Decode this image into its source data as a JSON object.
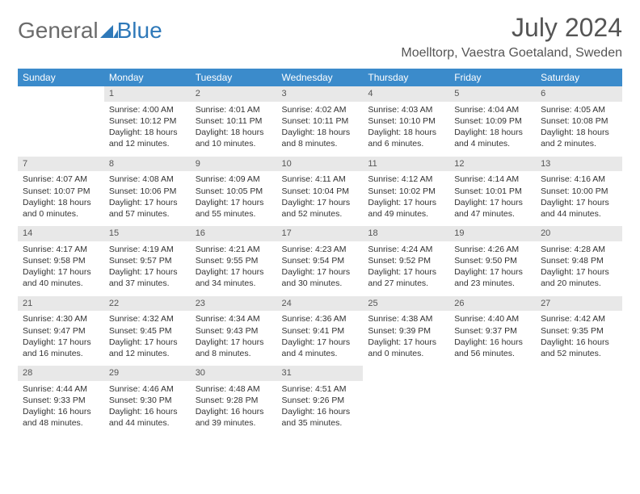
{
  "brand": {
    "part1": "General",
    "part2": "Blue"
  },
  "colors": {
    "header_bg": "#3b8bcb",
    "header_text": "#ffffff",
    "daynum_bg": "#e8e8e8",
    "text": "#333333",
    "brand_gray": "#6b6b6b",
    "brand_blue": "#2f79b9"
  },
  "title": {
    "month": "July 2024",
    "location": "Moelltorp, Vaestra Goetaland, Sweden"
  },
  "weekdays": [
    "Sunday",
    "Monday",
    "Tuesday",
    "Wednesday",
    "Thursday",
    "Friday",
    "Saturday"
  ],
  "weeks": [
    [
      {
        "blank": true
      },
      {
        "day": "1",
        "sunrise": "Sunrise: 4:00 AM",
        "sunset": "Sunset: 10:12 PM",
        "daylight1": "Daylight: 18 hours",
        "daylight2": "and 12 minutes."
      },
      {
        "day": "2",
        "sunrise": "Sunrise: 4:01 AM",
        "sunset": "Sunset: 10:11 PM",
        "daylight1": "Daylight: 18 hours",
        "daylight2": "and 10 minutes."
      },
      {
        "day": "3",
        "sunrise": "Sunrise: 4:02 AM",
        "sunset": "Sunset: 10:11 PM",
        "daylight1": "Daylight: 18 hours",
        "daylight2": "and 8 minutes."
      },
      {
        "day": "4",
        "sunrise": "Sunrise: 4:03 AM",
        "sunset": "Sunset: 10:10 PM",
        "daylight1": "Daylight: 18 hours",
        "daylight2": "and 6 minutes."
      },
      {
        "day": "5",
        "sunrise": "Sunrise: 4:04 AM",
        "sunset": "Sunset: 10:09 PM",
        "daylight1": "Daylight: 18 hours",
        "daylight2": "and 4 minutes."
      },
      {
        "day": "6",
        "sunrise": "Sunrise: 4:05 AM",
        "sunset": "Sunset: 10:08 PM",
        "daylight1": "Daylight: 18 hours",
        "daylight2": "and 2 minutes."
      }
    ],
    [
      {
        "day": "7",
        "sunrise": "Sunrise: 4:07 AM",
        "sunset": "Sunset: 10:07 PM",
        "daylight1": "Daylight: 18 hours",
        "daylight2": "and 0 minutes."
      },
      {
        "day": "8",
        "sunrise": "Sunrise: 4:08 AM",
        "sunset": "Sunset: 10:06 PM",
        "daylight1": "Daylight: 17 hours",
        "daylight2": "and 57 minutes."
      },
      {
        "day": "9",
        "sunrise": "Sunrise: 4:09 AM",
        "sunset": "Sunset: 10:05 PM",
        "daylight1": "Daylight: 17 hours",
        "daylight2": "and 55 minutes."
      },
      {
        "day": "10",
        "sunrise": "Sunrise: 4:11 AM",
        "sunset": "Sunset: 10:04 PM",
        "daylight1": "Daylight: 17 hours",
        "daylight2": "and 52 minutes."
      },
      {
        "day": "11",
        "sunrise": "Sunrise: 4:12 AM",
        "sunset": "Sunset: 10:02 PM",
        "daylight1": "Daylight: 17 hours",
        "daylight2": "and 49 minutes."
      },
      {
        "day": "12",
        "sunrise": "Sunrise: 4:14 AM",
        "sunset": "Sunset: 10:01 PM",
        "daylight1": "Daylight: 17 hours",
        "daylight2": "and 47 minutes."
      },
      {
        "day": "13",
        "sunrise": "Sunrise: 4:16 AM",
        "sunset": "Sunset: 10:00 PM",
        "daylight1": "Daylight: 17 hours",
        "daylight2": "and 44 minutes."
      }
    ],
    [
      {
        "day": "14",
        "sunrise": "Sunrise: 4:17 AM",
        "sunset": "Sunset: 9:58 PM",
        "daylight1": "Daylight: 17 hours",
        "daylight2": "and 40 minutes."
      },
      {
        "day": "15",
        "sunrise": "Sunrise: 4:19 AM",
        "sunset": "Sunset: 9:57 PM",
        "daylight1": "Daylight: 17 hours",
        "daylight2": "and 37 minutes."
      },
      {
        "day": "16",
        "sunrise": "Sunrise: 4:21 AM",
        "sunset": "Sunset: 9:55 PM",
        "daylight1": "Daylight: 17 hours",
        "daylight2": "and 34 minutes."
      },
      {
        "day": "17",
        "sunrise": "Sunrise: 4:23 AM",
        "sunset": "Sunset: 9:54 PM",
        "daylight1": "Daylight: 17 hours",
        "daylight2": "and 30 minutes."
      },
      {
        "day": "18",
        "sunrise": "Sunrise: 4:24 AM",
        "sunset": "Sunset: 9:52 PM",
        "daylight1": "Daylight: 17 hours",
        "daylight2": "and 27 minutes."
      },
      {
        "day": "19",
        "sunrise": "Sunrise: 4:26 AM",
        "sunset": "Sunset: 9:50 PM",
        "daylight1": "Daylight: 17 hours",
        "daylight2": "and 23 minutes."
      },
      {
        "day": "20",
        "sunrise": "Sunrise: 4:28 AM",
        "sunset": "Sunset: 9:48 PM",
        "daylight1": "Daylight: 17 hours",
        "daylight2": "and 20 minutes."
      }
    ],
    [
      {
        "day": "21",
        "sunrise": "Sunrise: 4:30 AM",
        "sunset": "Sunset: 9:47 PM",
        "daylight1": "Daylight: 17 hours",
        "daylight2": "and 16 minutes."
      },
      {
        "day": "22",
        "sunrise": "Sunrise: 4:32 AM",
        "sunset": "Sunset: 9:45 PM",
        "daylight1": "Daylight: 17 hours",
        "daylight2": "and 12 minutes."
      },
      {
        "day": "23",
        "sunrise": "Sunrise: 4:34 AM",
        "sunset": "Sunset: 9:43 PM",
        "daylight1": "Daylight: 17 hours",
        "daylight2": "and 8 minutes."
      },
      {
        "day": "24",
        "sunrise": "Sunrise: 4:36 AM",
        "sunset": "Sunset: 9:41 PM",
        "daylight1": "Daylight: 17 hours",
        "daylight2": "and 4 minutes."
      },
      {
        "day": "25",
        "sunrise": "Sunrise: 4:38 AM",
        "sunset": "Sunset: 9:39 PM",
        "daylight1": "Daylight: 17 hours",
        "daylight2": "and 0 minutes."
      },
      {
        "day": "26",
        "sunrise": "Sunrise: 4:40 AM",
        "sunset": "Sunset: 9:37 PM",
        "daylight1": "Daylight: 16 hours",
        "daylight2": "and 56 minutes."
      },
      {
        "day": "27",
        "sunrise": "Sunrise: 4:42 AM",
        "sunset": "Sunset: 9:35 PM",
        "daylight1": "Daylight: 16 hours",
        "daylight2": "and 52 minutes."
      }
    ],
    [
      {
        "day": "28",
        "sunrise": "Sunrise: 4:44 AM",
        "sunset": "Sunset: 9:33 PM",
        "daylight1": "Daylight: 16 hours",
        "daylight2": "and 48 minutes."
      },
      {
        "day": "29",
        "sunrise": "Sunrise: 4:46 AM",
        "sunset": "Sunset: 9:30 PM",
        "daylight1": "Daylight: 16 hours",
        "daylight2": "and 44 minutes."
      },
      {
        "day": "30",
        "sunrise": "Sunrise: 4:48 AM",
        "sunset": "Sunset: 9:28 PM",
        "daylight1": "Daylight: 16 hours",
        "daylight2": "and 39 minutes."
      },
      {
        "day": "31",
        "sunrise": "Sunrise: 4:51 AM",
        "sunset": "Sunset: 9:26 PM",
        "daylight1": "Daylight: 16 hours",
        "daylight2": "and 35 minutes."
      },
      {
        "blank": true
      },
      {
        "blank": true
      },
      {
        "blank": true
      }
    ]
  ]
}
